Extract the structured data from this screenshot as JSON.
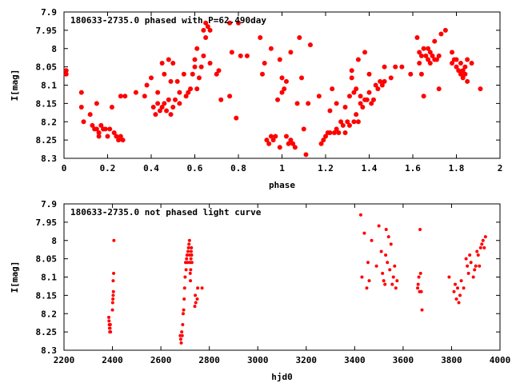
{
  "chart_data": [
    {
      "type": "scatter",
      "title": "180633-2735.0 phased with P=62.490day",
      "xlabel": "phase",
      "ylabel": "I[mag]",
      "xlim": [
        0,
        2
      ],
      "ylim": [
        8.3,
        7.9
      ],
      "y_inverted": true,
      "x_ticks": [
        "0",
        "0.2",
        "0.4",
        "0.6",
        "0.8",
        "1",
        "1.2",
        "1.4",
        "1.6",
        "1.8",
        "2"
      ],
      "y_ticks": [
        "7.9",
        "7.95",
        "8",
        "8.05",
        "8.1",
        "8.15",
        "8.2",
        "8.25",
        "8.3"
      ],
      "marker_color": "#ff0000",
      "grid": false,
      "legend": "none",
      "points": [
        [
          0.01,
          8.06
        ],
        [
          0.01,
          8.07
        ],
        [
          0.08,
          8.12
        ],
        [
          0.08,
          8.16
        ],
        [
          0.09,
          8.2
        ],
        [
          0.12,
          8.18
        ],
        [
          0.13,
          8.21
        ],
        [
          0.14,
          8.22
        ],
        [
          0.15,
          8.22
        ],
        [
          0.16,
          8.23
        ],
        [
          0.16,
          8.24
        ],
        [
          0.15,
          8.15
        ],
        [
          0.17,
          8.21
        ],
        [
          0.18,
          8.22
        ],
        [
          0.19,
          8.22
        ],
        [
          0.2,
          8.24
        ],
        [
          0.21,
          8.22
        ],
        [
          0.22,
          8.16
        ],
        [
          0.23,
          8.23
        ],
        [
          0.24,
          8.24
        ],
        [
          0.25,
          8.25
        ],
        [
          0.26,
          8.24
        ],
        [
          0.26,
          8.13
        ],
        [
          0.27,
          8.25
        ],
        [
          0.28,
          8.13
        ],
        [
          0.33,
          8.12
        ],
        [
          0.37,
          8.13
        ],
        [
          0.38,
          8.1
        ],
        [
          0.4,
          8.08
        ],
        [
          0.41,
          8.16
        ],
        [
          0.42,
          8.18
        ],
        [
          0.43,
          8.15
        ],
        [
          0.43,
          8.12
        ],
        [
          0.44,
          8.17
        ],
        [
          0.45,
          8.16
        ],
        [
          0.45,
          8.04
        ],
        [
          0.46,
          8.07
        ],
        [
          0.46,
          8.15
        ],
        [
          0.47,
          8.17
        ],
        [
          0.48,
          8.14
        ],
        [
          0.48,
          8.03
        ],
        [
          0.49,
          8.18
        ],
        [
          0.49,
          8.09
        ],
        [
          0.5,
          8.16
        ],
        [
          0.5,
          8.04
        ],
        [
          0.51,
          8.14
        ],
        [
          0.52,
          8.09
        ],
        [
          0.53,
          8.12
        ],
        [
          0.53,
          8.15
        ],
        [
          0.55,
          8.07
        ],
        [
          0.56,
          8.13
        ],
        [
          0.57,
          8.12
        ],
        [
          0.58,
          8.11
        ],
        [
          0.59,
          8.07
        ],
        [
          0.6,
          8.05
        ],
        [
          0.6,
          8.03
        ],
        [
          0.61,
          8.0
        ],
        [
          0.61,
          8.11
        ],
        [
          0.62,
          8.08
        ],
        [
          0.63,
          8.05
        ],
        [
          0.64,
          8.02
        ],
        [
          0.64,
          7.95
        ],
        [
          0.65,
          7.93
        ],
        [
          0.65,
          7.97
        ],
        [
          0.66,
          7.94
        ],
        [
          0.67,
          7.95
        ],
        [
          0.67,
          8.04
        ],
        [
          0.7,
          8.07
        ],
        [
          0.71,
          8.06
        ],
        [
          0.72,
          8.14
        ],
        [
          0.76,
          8.13
        ],
        [
          0.76,
          7.93
        ],
        [
          0.77,
          8.01
        ],
        [
          0.79,
          8.19
        ],
        [
          0.8,
          7.93
        ],
        [
          0.81,
          8.02
        ],
        [
          0.84,
          8.02
        ],
        [
          0.9,
          7.97
        ],
        [
          0.91,
          8.07
        ],
        [
          0.92,
          8.04
        ],
        [
          0.93,
          8.25
        ],
        [
          0.94,
          8.26
        ],
        [
          0.95,
          8.24
        ],
        [
          0.95,
          8.0
        ],
        [
          0.96,
          8.25
        ],
        [
          0.97,
          8.24
        ],
        [
          0.98,
          8.14
        ],
        [
          0.99,
          8.03
        ],
        [
          0.99,
          8.27
        ],
        [
          1.0,
          8.12
        ],
        [
          1.0,
          8.08
        ],
        [
          1.01,
          8.11
        ],
        [
          1.02,
          8.24
        ],
        [
          1.02,
          8.09
        ],
        [
          1.03,
          8.26
        ],
        [
          1.04,
          8.25
        ],
        [
          1.04,
          8.01
        ],
        [
          1.05,
          8.26
        ],
        [
          1.06,
          8.27
        ],
        [
          1.07,
          8.15
        ],
        [
          1.08,
          7.97
        ],
        [
          1.09,
          8.08
        ],
        [
          1.1,
          8.22
        ],
        [
          1.11,
          8.29
        ],
        [
          1.12,
          8.15
        ],
        [
          1.13,
          7.99
        ],
        [
          1.17,
          8.13
        ],
        [
          1.18,
          8.26
        ],
        [
          1.19,
          8.25
        ],
        [
          1.2,
          8.24
        ],
        [
          1.21,
          8.23
        ],
        [
          1.22,
          8.23
        ],
        [
          1.22,
          8.17
        ],
        [
          1.23,
          8.11
        ],
        [
          1.24,
          8.23
        ],
        [
          1.25,
          8.22
        ],
        [
          1.25,
          8.15
        ],
        [
          1.26,
          8.23
        ],
        [
          1.27,
          8.2
        ],
        [
          1.28,
          8.21
        ],
        [
          1.29,
          8.16
        ],
        [
          1.29,
          8.23
        ],
        [
          1.3,
          8.2
        ],
        [
          1.31,
          8.21
        ],
        [
          1.31,
          8.13
        ],
        [
          1.32,
          8.06
        ],
        [
          1.32,
          8.08
        ],
        [
          1.33,
          8.2
        ],
        [
          1.33,
          8.12
        ],
        [
          1.34,
          8.18
        ],
        [
          1.34,
          8.11
        ],
        [
          1.35,
          8.2
        ],
        [
          1.35,
          8.03
        ],
        [
          1.36,
          8.15
        ],
        [
          1.36,
          8.13
        ],
        [
          1.37,
          8.16
        ],
        [
          1.38,
          8.14
        ],
        [
          1.38,
          8.01
        ],
        [
          1.39,
          8.14
        ],
        [
          1.4,
          8.12
        ],
        [
          1.4,
          8.07
        ],
        [
          1.41,
          8.15
        ],
        [
          1.42,
          8.14
        ],
        [
          1.43,
          8.1
        ],
        [
          1.44,
          8.11
        ],
        [
          1.45,
          8.09
        ],
        [
          1.46,
          8.1
        ],
        [
          1.47,
          8.09
        ],
        [
          1.47,
          8.05
        ],
        [
          1.5,
          8.08
        ],
        [
          1.52,
          8.05
        ],
        [
          1.55,
          8.05
        ],
        [
          1.59,
          8.07
        ],
        [
          1.62,
          7.97
        ],
        [
          1.63,
          8.01
        ],
        [
          1.63,
          8.04
        ],
        [
          1.64,
          8.02
        ],
        [
          1.64,
          8.07
        ],
        [
          1.65,
          8.0
        ],
        [
          1.65,
          8.13
        ],
        [
          1.66,
          8.02
        ],
        [
          1.67,
          8.03
        ],
        [
          1.67,
          8.0
        ],
        [
          1.68,
          8.04
        ],
        [
          1.68,
          8.01
        ],
        [
          1.69,
          8.02
        ],
        [
          1.7,
          8.03
        ],
        [
          1.7,
          7.98
        ],
        [
          1.71,
          8.03
        ],
        [
          1.72,
          8.02
        ],
        [
          1.72,
          8.11
        ],
        [
          1.73,
          7.96
        ],
        [
          1.75,
          7.95
        ],
        [
          1.78,
          8.04
        ],
        [
          1.78,
          8.01
        ],
        [
          1.79,
          8.03
        ],
        [
          1.8,
          8.05
        ],
        [
          1.8,
          8.03
        ],
        [
          1.81,
          8.06
        ],
        [
          1.82,
          8.04
        ],
        [
          1.82,
          8.07
        ],
        [
          1.83,
          8.06
        ],
        [
          1.83,
          8.08
        ],
        [
          1.84,
          8.05
        ],
        [
          1.84,
          8.07
        ],
        [
          1.85,
          8.09
        ],
        [
          1.85,
          8.03
        ],
        [
          1.87,
          8.04
        ],
        [
          1.91,
          8.11
        ]
      ]
    },
    {
      "type": "scatter",
      "title": "180633-2735.0 not phased light curve",
      "xlabel": "hjd0",
      "ylabel": "I[mag]",
      "xlim": [
        2200,
        4000
      ],
      "ylim": [
        8.3,
        7.9
      ],
      "y_inverted": true,
      "x_ticks": [
        "2200",
        "2400",
        "2600",
        "2800",
        "3000",
        "3200",
        "3400",
        "3600",
        "3800",
        "4000"
      ],
      "y_ticks": [
        "7.9",
        "7.95",
        "8",
        "8.05",
        "8.1",
        "8.15",
        "8.2",
        "8.25",
        "8.3"
      ],
      "marker_color": "#ff0000",
      "grid": false,
      "legend": "none",
      "points": [
        [
          2385,
          8.21
        ],
        [
          2386,
          8.22
        ],
        [
          2387,
          8.23
        ],
        [
          2388,
          8.24
        ],
        [
          2389,
          8.25
        ],
        [
          2390,
          8.24
        ],
        [
          2391,
          8.23
        ],
        [
          2392,
          8.25
        ],
        [
          2400,
          8.19
        ],
        [
          2401,
          8.17
        ],
        [
          2402,
          8.16
        ],
        [
          2403,
          8.15
        ],
        [
          2404,
          8.14
        ],
        [
          2403,
          8.11
        ],
        [
          2405,
          8.09
        ],
        [
          2406,
          8.0
        ],
        [
          2680,
          8.26
        ],
        [
          2682,
          8.27
        ],
        [
          2684,
          8.28
        ],
        [
          2686,
          8.25
        ],
        [
          2688,
          8.26
        ],
        [
          2690,
          8.23
        ],
        [
          2692,
          8.2
        ],
        [
          2694,
          8.19
        ],
        [
          2696,
          8.16
        ],
        [
          2698,
          8.13
        ],
        [
          2700,
          8.1
        ],
        [
          2702,
          8.06
        ],
        [
          2704,
          8.08
        ],
        [
          2706,
          8.05
        ],
        [
          2708,
          8.04
        ],
        [
          2710,
          8.06
        ],
        [
          2712,
          8.03
        ],
        [
          2714,
          8.02
        ],
        [
          2716,
          8.01
        ],
        [
          2718,
          8.0
        ],
        [
          2719,
          8.04
        ],
        [
          2720,
          8.06
        ],
        [
          2721,
          8.09
        ],
        [
          2722,
          8.11
        ],
        [
          2723,
          8.08
        ],
        [
          2724,
          8.05
        ],
        [
          2725,
          8.03
        ],
        [
          2726,
          8.02
        ],
        [
          2727,
          8.04
        ],
        [
          2728,
          8.06
        ],
        [
          2740,
          8.18
        ],
        [
          2742,
          8.15
        ],
        [
          2744,
          8.17
        ],
        [
          2750,
          8.16
        ],
        [
          2752,
          8.13
        ],
        [
          2770,
          8.13
        ],
        [
          3425,
          7.93
        ],
        [
          3430,
          8.1
        ],
        [
          3440,
          7.98
        ],
        [
          3450,
          8.13
        ],
        [
          3455,
          8.06
        ],
        [
          3460,
          8.11
        ],
        [
          3470,
          8.0
        ],
        [
          3490,
          8.07
        ],
        [
          3500,
          7.96
        ],
        [
          3510,
          8.03
        ],
        [
          3515,
          8.09
        ],
        [
          3520,
          8.11
        ],
        [
          3525,
          8.12
        ],
        [
          3528,
          8.04
        ],
        [
          3530,
          7.97
        ],
        [
          3535,
          8.06
        ],
        [
          3540,
          7.99
        ],
        [
          3545,
          8.08
        ],
        [
          3550,
          8.01
        ],
        [
          3555,
          8.12
        ],
        [
          3560,
          8.1
        ],
        [
          3565,
          8.07
        ],
        [
          3570,
          8.13
        ],
        [
          3575,
          8.11
        ],
        [
          3660,
          8.13
        ],
        [
          3662,
          8.12
        ],
        [
          3665,
          8.1
        ],
        [
          3668,
          8.14
        ],
        [
          3670,
          7.97
        ],
        [
          3672,
          8.09
        ],
        [
          3675,
          8.14
        ],
        [
          3678,
          8.19
        ],
        [
          3790,
          8.1
        ],
        [
          3810,
          8.14
        ],
        [
          3815,
          8.12
        ],
        [
          3820,
          8.16
        ],
        [
          3825,
          8.13
        ],
        [
          3830,
          8.17
        ],
        [
          3835,
          8.15
        ],
        [
          3840,
          8.11
        ],
        [
          3850,
          8.13
        ],
        [
          3860,
          8.05
        ],
        [
          3865,
          8.07
        ],
        [
          3870,
          8.09
        ],
        [
          3875,
          8.04
        ],
        [
          3880,
          8.06
        ],
        [
          3890,
          8.1
        ],
        [
          3895,
          8.08
        ],
        [
          3900,
          8.07
        ],
        [
          3905,
          8.03
        ],
        [
          3910,
          8.04
        ],
        [
          3915,
          8.07
        ],
        [
          3920,
          8.02
        ],
        [
          3925,
          8.01
        ],
        [
          3930,
          8.0
        ],
        [
          3935,
          8.02
        ],
        [
          3940,
          7.99
        ]
      ]
    }
  ]
}
